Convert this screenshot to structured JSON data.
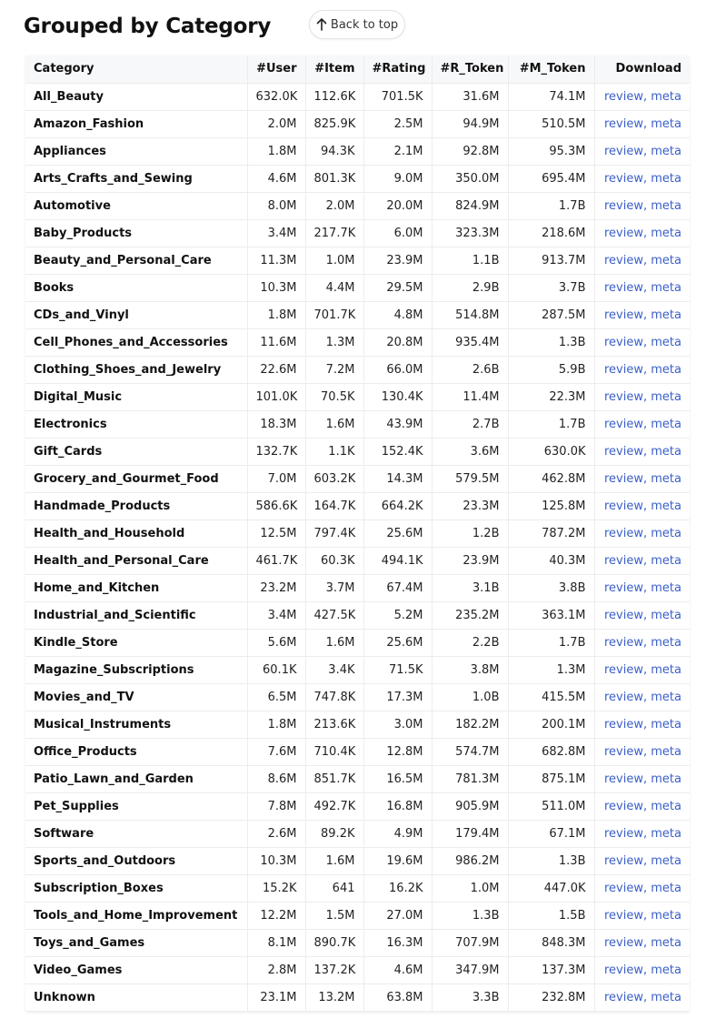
{
  "page": {
    "title": "Grouped by Category",
    "back_to_top_label": "Back to top"
  },
  "icons": {
    "back_to_top": "arrow-up-icon"
  },
  "colors": {
    "link": "#3a5fc8",
    "header_bg": "#f7f8fa",
    "border": "#ececec"
  },
  "table": {
    "headers": [
      "Category",
      "#User",
      "#Item",
      "#Rating",
      "#R_Token",
      "#M_Token",
      "Download"
    ],
    "link_review": "review",
    "link_sep": ", ",
    "link_meta": "meta",
    "rows": [
      [
        "All_Beauty",
        "632.0K",
        "112.6K",
        "701.5K",
        "31.6M",
        "74.1M"
      ],
      [
        "Amazon_Fashion",
        "2.0M",
        "825.9K",
        "2.5M",
        "94.9M",
        "510.5M"
      ],
      [
        "Appliances",
        "1.8M",
        "94.3K",
        "2.1M",
        "92.8M",
        "95.3M"
      ],
      [
        "Arts_Crafts_and_Sewing",
        "4.6M",
        "801.3K",
        "9.0M",
        "350.0M",
        "695.4M"
      ],
      [
        "Automotive",
        "8.0M",
        "2.0M",
        "20.0M",
        "824.9M",
        "1.7B"
      ],
      [
        "Baby_Products",
        "3.4M",
        "217.7K",
        "6.0M",
        "323.3M",
        "218.6M"
      ],
      [
        "Beauty_and_Personal_Care",
        "11.3M",
        "1.0M",
        "23.9M",
        "1.1B",
        "913.7M"
      ],
      [
        "Books",
        "10.3M",
        "4.4M",
        "29.5M",
        "2.9B",
        "3.7B"
      ],
      [
        "CDs_and_Vinyl",
        "1.8M",
        "701.7K",
        "4.8M",
        "514.8M",
        "287.5M"
      ],
      [
        "Cell_Phones_and_Accessories",
        "11.6M",
        "1.3M",
        "20.8M",
        "935.4M",
        "1.3B"
      ],
      [
        "Clothing_Shoes_and_Jewelry",
        "22.6M",
        "7.2M",
        "66.0M",
        "2.6B",
        "5.9B"
      ],
      [
        "Digital_Music",
        "101.0K",
        "70.5K",
        "130.4K",
        "11.4M",
        "22.3M"
      ],
      [
        "Electronics",
        "18.3M",
        "1.6M",
        "43.9M",
        "2.7B",
        "1.7B"
      ],
      [
        "Gift_Cards",
        "132.7K",
        "1.1K",
        "152.4K",
        "3.6M",
        "630.0K"
      ],
      [
        "Grocery_and_Gourmet_Food",
        "7.0M",
        "603.2K",
        "14.3M",
        "579.5M",
        "462.8M"
      ],
      [
        "Handmade_Products",
        "586.6K",
        "164.7K",
        "664.2K",
        "23.3M",
        "125.8M"
      ],
      [
        "Health_and_Household",
        "12.5M",
        "797.4K",
        "25.6M",
        "1.2B",
        "787.2M"
      ],
      [
        "Health_and_Personal_Care",
        "461.7K",
        "60.3K",
        "494.1K",
        "23.9M",
        "40.3M"
      ],
      [
        "Home_and_Kitchen",
        "23.2M",
        "3.7M",
        "67.4M",
        "3.1B",
        "3.8B"
      ],
      [
        "Industrial_and_Scientific",
        "3.4M",
        "427.5K",
        "5.2M",
        "235.2M",
        "363.1M"
      ],
      [
        "Kindle_Store",
        "5.6M",
        "1.6M",
        "25.6M",
        "2.2B",
        "1.7B"
      ],
      [
        "Magazine_Subscriptions",
        "60.1K",
        "3.4K",
        "71.5K",
        "3.8M",
        "1.3M"
      ],
      [
        "Movies_and_TV",
        "6.5M",
        "747.8K",
        "17.3M",
        "1.0B",
        "415.5M"
      ],
      [
        "Musical_Instruments",
        "1.8M",
        "213.6K",
        "3.0M",
        "182.2M",
        "200.1M"
      ],
      [
        "Office_Products",
        "7.6M",
        "710.4K",
        "12.8M",
        "574.7M",
        "682.8M"
      ],
      [
        "Patio_Lawn_and_Garden",
        "8.6M",
        "851.7K",
        "16.5M",
        "781.3M",
        "875.1M"
      ],
      [
        "Pet_Supplies",
        "7.8M",
        "492.7K",
        "16.8M",
        "905.9M",
        "511.0M"
      ],
      [
        "Software",
        "2.6M",
        "89.2K",
        "4.9M",
        "179.4M",
        "67.1M"
      ],
      [
        "Sports_and_Outdoors",
        "10.3M",
        "1.6M",
        "19.6M",
        "986.2M",
        "1.3B"
      ],
      [
        "Subscription_Boxes",
        "15.2K",
        "641",
        "16.2K",
        "1.0M",
        "447.0K"
      ],
      [
        "Tools_and_Home_Improvement",
        "12.2M",
        "1.5M",
        "27.0M",
        "1.3B",
        "1.5B"
      ],
      [
        "Toys_and_Games",
        "8.1M",
        "890.7K",
        "16.3M",
        "707.9M",
        "848.3M"
      ],
      [
        "Video_Games",
        "2.8M",
        "137.2K",
        "4.6M",
        "347.9M",
        "137.3M"
      ],
      [
        "Unknown",
        "23.1M",
        "13.2M",
        "63.8M",
        "3.3B",
        "232.8M"
      ]
    ]
  }
}
